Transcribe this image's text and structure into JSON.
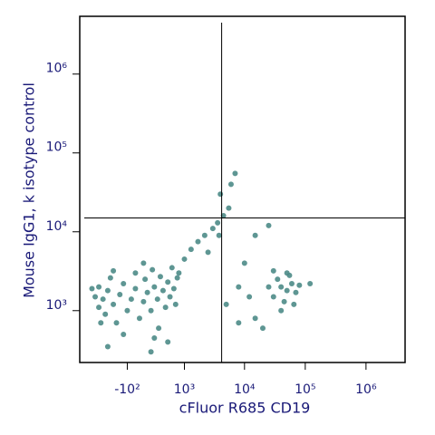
{
  "chart_data": {
    "type": "scatter",
    "x_label": "cFluor R685 CD19",
    "y_label": "Mouse IgG1, k isotype control",
    "xscale": "logicle",
    "yscale": "log",
    "xlim": [
      -1300,
      4400000
    ],
    "ylim": [
      220,
      5400000
    ],
    "xticks": [
      {
        "value": -100,
        "label": "-10²"
      },
      {
        "value": 1000,
        "label": "10³"
      },
      {
        "value": 10000,
        "label": "10⁴"
      },
      {
        "value": 100000,
        "label": "10⁵"
      },
      {
        "value": 1000000,
        "label": "10⁶"
      }
    ],
    "yticks": [
      {
        "value": 1000,
        "label": "10³"
      },
      {
        "value": 10000,
        "label": "10⁴"
      },
      {
        "value": 100000,
        "label": "10⁵"
      },
      {
        "value": 1000000,
        "label": "10⁶"
      }
    ],
    "quadrant": {
      "x": 4200,
      "y": 15000
    },
    "color": "#4d8b87",
    "x": [
      -700,
      -600,
      -600,
      -500,
      -450,
      -400,
      -350,
      -300,
      -250,
      -200,
      -150,
      -100,
      -50,
      0,
      0,
      50,
      100,
      120,
      150,
      200,
      220,
      250,
      300,
      320,
      350,
      400,
      450,
      500,
      550,
      600,
      650,
      700,
      750,
      -550,
      -150,
      250,
      100,
      -300,
      800,
      -800,
      1000,
      1300,
      1700,
      2200,
      3000,
      3600,
      4500,
      5500,
      4000,
      6000,
      7000,
      3800,
      2500,
      -400,
      200,
      500,
      30000,
      40000,
      50000,
      60000,
      45000,
      35000,
      55000,
      70000,
      25000,
      40000,
      65000,
      50000,
      80000,
      30000,
      8000,
      12000,
      15000,
      20000,
      10000,
      15000,
      25000,
      120000,
      5000,
      8000
    ],
    "y": [
      1500,
      1100,
      2000,
      1400,
      900,
      1800,
      2600,
      1200,
      700,
      1600,
      2200,
      1000,
      1400,
      3000,
      1900,
      800,
      1300,
      2500,
      1700,
      1000,
      3300,
      2000,
      1400,
      600,
      2700,
      1800,
      1100,
      2300,
      1500,
      3500,
      1900,
      1200,
      2600,
      700,
      500,
      450,
      4000,
      3200,
      3000,
      1900,
      4500,
      6000,
      7500,
      9000,
      11000,
      13000,
      16000,
      20000,
      30000,
      40000,
      55000,
      9000,
      5500,
      350,
      300,
      400,
      1500,
      2000,
      1800,
      2200,
      1300,
      2500,
      2800,
      1700,
      2000,
      1000,
      1200,
      3000,
      2100,
      3200,
      2000,
      1500,
      800,
      600,
      4000,
      9000,
      12000,
      2200,
      1200,
      700
    ]
  }
}
